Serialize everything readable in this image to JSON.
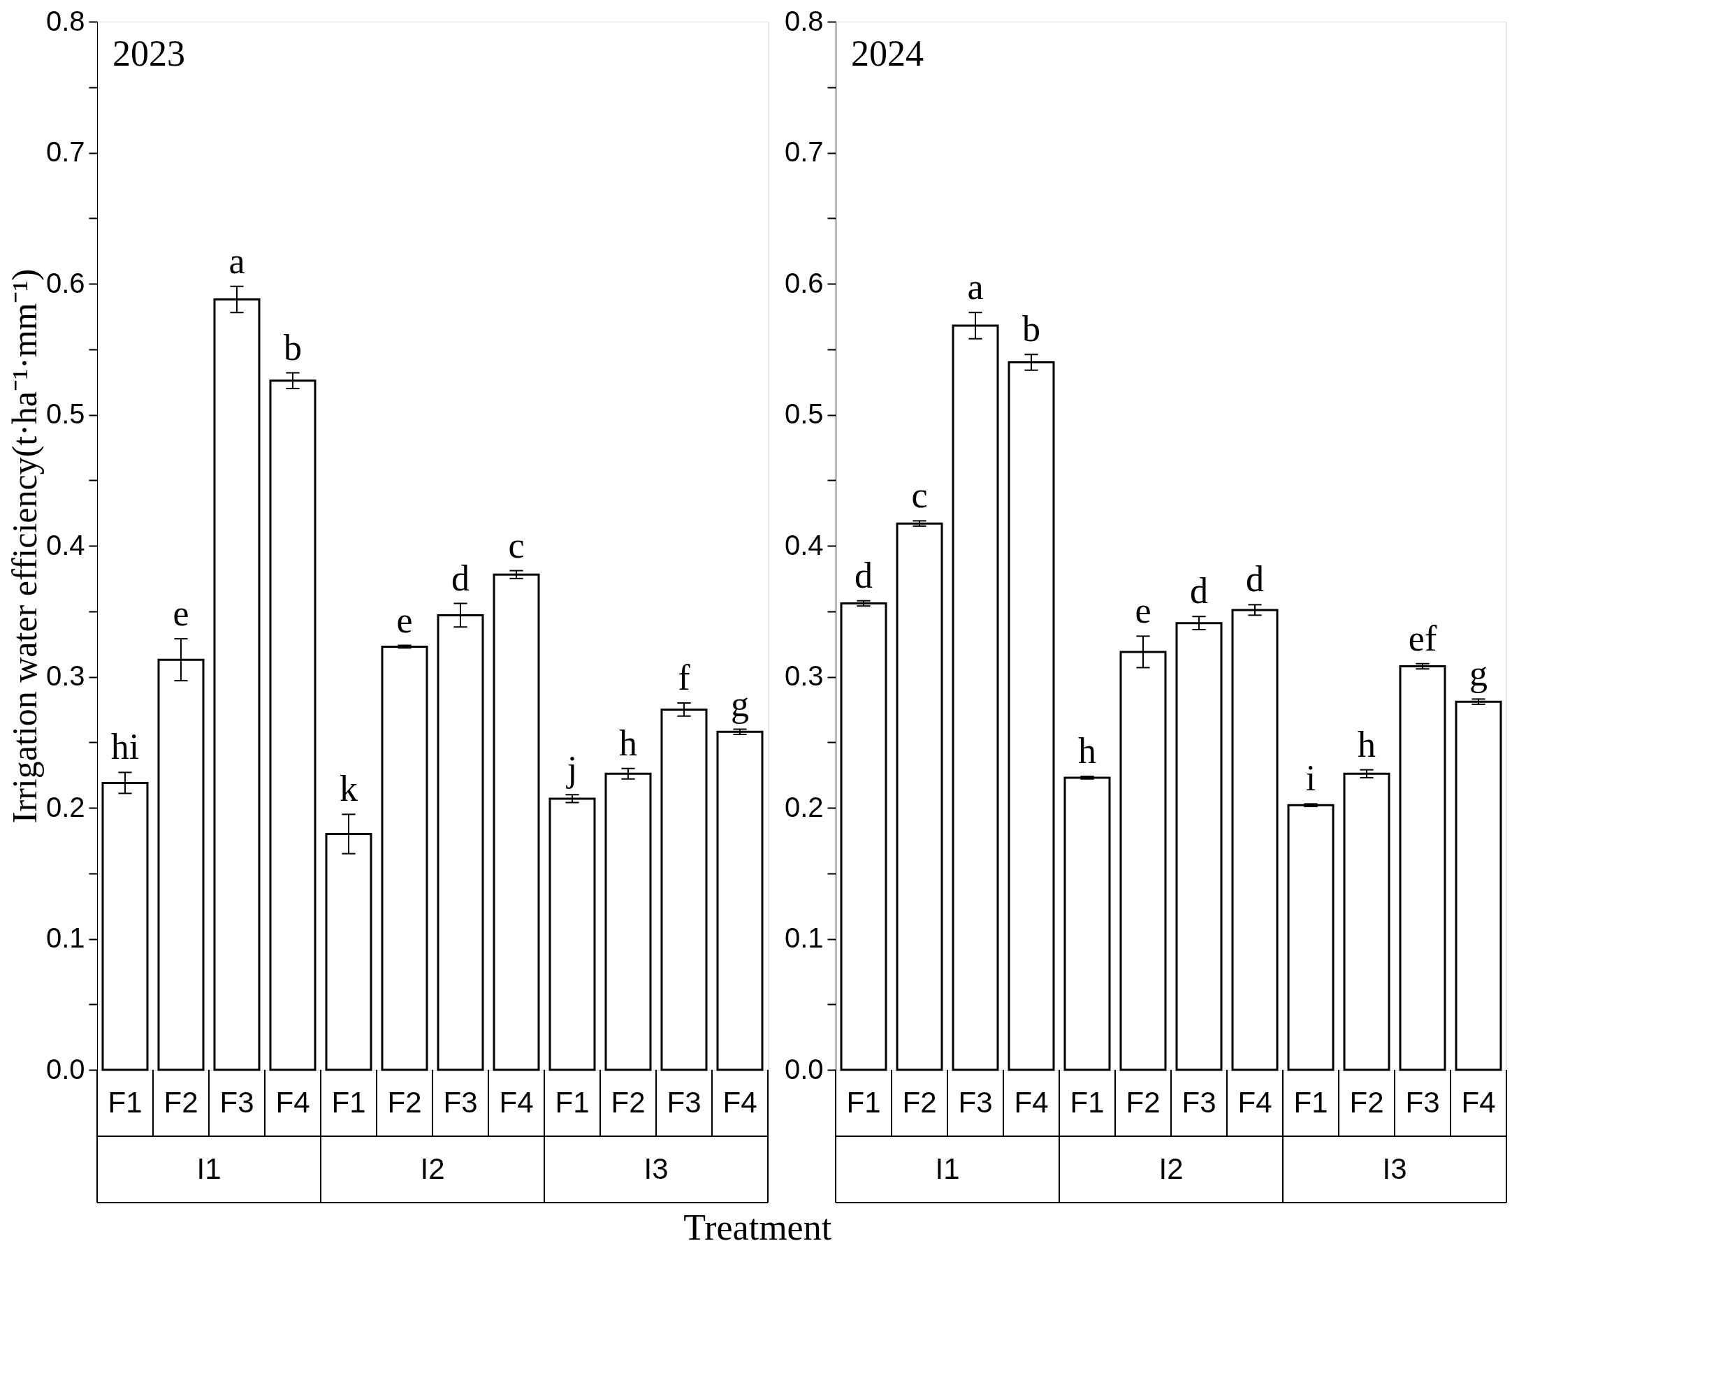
{
  "chart_data": [
    {
      "type": "bar",
      "title": "2023",
      "ylabel": "Irrigation water efficiency(t·ha⁻¹·mm⁻¹)",
      "xlabel": "Treatment",
      "categories": [
        "F1",
        "F2",
        "F3",
        "F4",
        "F1",
        "F2",
        "F3",
        "F4",
        "F1",
        "F2",
        "F3",
        "F4"
      ],
      "annotations": [
        "I1",
        "I2",
        "I3"
      ],
      "values": [
        0.219,
        0.313,
        0.588,
        0.526,
        0.18,
        0.323,
        0.347,
        0.378,
        0.207,
        0.226,
        0.275,
        0.258
      ],
      "errors": [
        0.008,
        0.016,
        0.01,
        0.006,
        0.015,
        0.001,
        0.009,
        0.003,
        0.003,
        0.004,
        0.005,
        0.002
      ],
      "value_labels": [
        "hi",
        "e",
        "a",
        "b",
        "k",
        "e",
        "d",
        "c",
        "j",
        "h",
        "f",
        "g"
      ],
      "color": "#ffffff",
      "ylim": [
        0,
        0.8
      ],
      "yticks": [
        {
          "value": 0,
          "label": "0.0"
        },
        {
          "value": 0.05,
          "label": null
        },
        {
          "value": 0.1,
          "label": "0.1"
        },
        {
          "value": 0.15,
          "label": null
        },
        {
          "value": 0.2,
          "label": "0.2"
        },
        {
          "value": 0.25,
          "label": null
        },
        {
          "value": 0.3,
          "label": "0.3"
        },
        {
          "value": 0.35,
          "label": null
        },
        {
          "value": 0.4,
          "label": "0.4"
        },
        {
          "value": 0.45,
          "label": null
        },
        {
          "value": 0.5,
          "label": "0.5"
        },
        {
          "value": 0.55,
          "label": null
        },
        {
          "value": 0.6,
          "label": "0.6"
        },
        {
          "value": 0.65,
          "label": null
        },
        {
          "value": 0.7,
          "label": "0.7"
        },
        {
          "value": 0.75,
          "label": null
        },
        {
          "value": 0.8,
          "label": "0.8"
        }
      ]
    },
    {
      "type": "bar",
      "title": "2024",
      "categories": [
        "F1",
        "F2",
        "F3",
        "F4",
        "F1",
        "F2",
        "F3",
        "F4",
        "F1",
        "F2",
        "F3",
        "F4"
      ],
      "annotations": [
        "I1",
        "I2",
        "I3"
      ],
      "values": [
        0.356,
        0.417,
        0.568,
        0.54,
        0.223,
        0.319,
        0.341,
        0.351,
        0.202,
        0.226,
        0.308,
        0.281
      ],
      "errors": [
        0.002,
        0.002,
        0.01,
        0.006,
        0.001,
        0.012,
        0.005,
        0.004,
        0.001,
        0.003,
        0.002,
        0.002
      ],
      "value_labels": [
        "d",
        "c",
        "a",
        "b",
        "h",
        "e",
        "d",
        "d",
        "i",
        "h",
        "ef",
        "g"
      ],
      "color": "#ffffff",
      "ylim": [
        0,
        0.8
      ],
      "yticks": [
        {
          "value": 0,
          "label": "0.0"
        },
        {
          "value": 0.05,
          "label": null
        },
        {
          "value": 0.1,
          "label": "0.1"
        },
        {
          "value": 0.15,
          "label": null
        },
        {
          "value": 0.2,
          "label": "0.2"
        },
        {
          "value": 0.25,
          "label": null
        },
        {
          "value": 0.3,
          "label": "0.3"
        },
        {
          "value": 0.35,
          "label": null
        },
        {
          "value": 0.4,
          "label": "0.4"
        },
        {
          "value": 0.45,
          "label": null
        },
        {
          "value": 0.5,
          "label": "0.5"
        },
        {
          "value": 0.55,
          "label": null
        },
        {
          "value": 0.6,
          "label": "0.6"
        },
        {
          "value": 0.65,
          "label": null
        },
        {
          "value": 0.7,
          "label": "0.7"
        },
        {
          "value": 0.75,
          "label": null
        },
        {
          "value": 0.8,
          "label": "0.8"
        }
      ]
    }
  ]
}
